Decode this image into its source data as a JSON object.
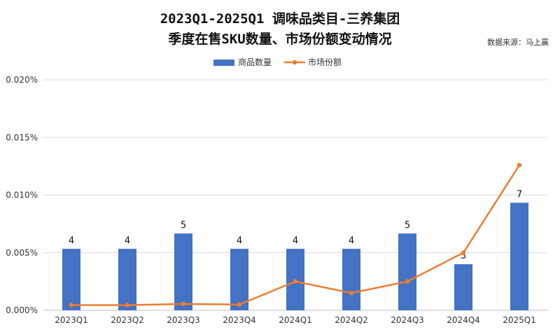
{
  "header": {
    "title_line1": "2023Q1-2025Q1 调味品类目-三养集团",
    "title_line2": "季度在售SKU数量、市场份额变动情况",
    "source": "数据来源：马上赢"
  },
  "colors": {
    "bar": "#4472C4",
    "line": "#ED7D31",
    "grid": "#D9D9D9",
    "axis": "#BFBFBF"
  },
  "chart_data": {
    "type": "bar",
    "categories": [
      "2023Q1",
      "2023Q2",
      "2023Q3",
      "2023Q4",
      "2024Q1",
      "2024Q2",
      "2024Q3",
      "2024Q4",
      "2025Q1"
    ],
    "series": [
      {
        "name": "商品数量",
        "type": "bar",
        "values": [
          4,
          4,
          5,
          4,
          4,
          4,
          5,
          3,
          7
        ],
        "data_labels": [
          "4",
          "4",
          "5",
          "4",
          "4",
          "4",
          "5",
          "3",
          "7"
        ]
      },
      {
        "name": "市场份额",
        "type": "line",
        "values": [
          0.00045,
          0.00045,
          0.00055,
          0.0005,
          0.0025,
          0.0015,
          0.0025,
          0.005,
          0.0126
        ]
      }
    ],
    "y_axis": {
      "ticks": [
        0,
        0.005,
        0.01,
        0.015,
        0.02
      ],
      "tick_labels": [
        "0.000%",
        "0.005%",
        "0.010%",
        "0.015%",
        "0.020%"
      ],
      "ylim": [
        0,
        0.02
      ]
    },
    "bar_axis_max": 15,
    "legend": {
      "position": "top",
      "items": [
        "商品数量",
        "市场份额"
      ]
    },
    "grid": true
  }
}
